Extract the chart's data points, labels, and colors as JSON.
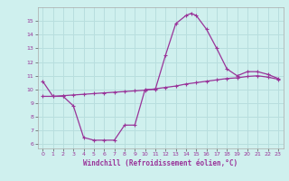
{
  "xlabel": "Windchill (Refroidissement éolien,°C)",
  "xlim": [
    -0.5,
    23.5
  ],
  "ylim": [
    5.7,
    16.0
  ],
  "yticks": [
    6,
    7,
    8,
    9,
    10,
    11,
    12,
    13,
    14,
    15
  ],
  "xticks": [
    0,
    1,
    2,
    3,
    4,
    5,
    6,
    7,
    8,
    9,
    10,
    11,
    12,
    13,
    14,
    15,
    16,
    17,
    18,
    19,
    20,
    21,
    22,
    23
  ],
  "bg_color": "#cff0ee",
  "line_color": "#993399",
  "grid_color": "#b8dede",
  "curve1_x": [
    0,
    1,
    2,
    3,
    4,
    5,
    6,
    7,
    8,
    9,
    10,
    11,
    12,
    13,
    14,
    14.5,
    15,
    16,
    17,
    18,
    19,
    20,
    21,
    22,
    23
  ],
  "curve1_y": [
    10.6,
    9.5,
    9.5,
    8.8,
    6.5,
    6.3,
    6.3,
    6.3,
    7.4,
    7.4,
    10.0,
    10.0,
    12.5,
    14.8,
    15.4,
    15.55,
    15.4,
    14.4,
    13.0,
    11.5,
    11.0,
    11.3,
    11.3,
    11.1,
    10.8
  ],
  "curve2_x": [
    0,
    1,
    2,
    3,
    4,
    5,
    6,
    7,
    8,
    9,
    10,
    11,
    12,
    13,
    14,
    15,
    16,
    17,
    18,
    19,
    20,
    21,
    22,
    23
  ],
  "curve2_y": [
    9.5,
    9.5,
    9.55,
    9.6,
    9.65,
    9.7,
    9.75,
    9.8,
    9.85,
    9.9,
    9.95,
    10.05,
    10.15,
    10.25,
    10.4,
    10.5,
    10.6,
    10.7,
    10.8,
    10.85,
    10.95,
    11.0,
    10.9,
    10.75
  ]
}
